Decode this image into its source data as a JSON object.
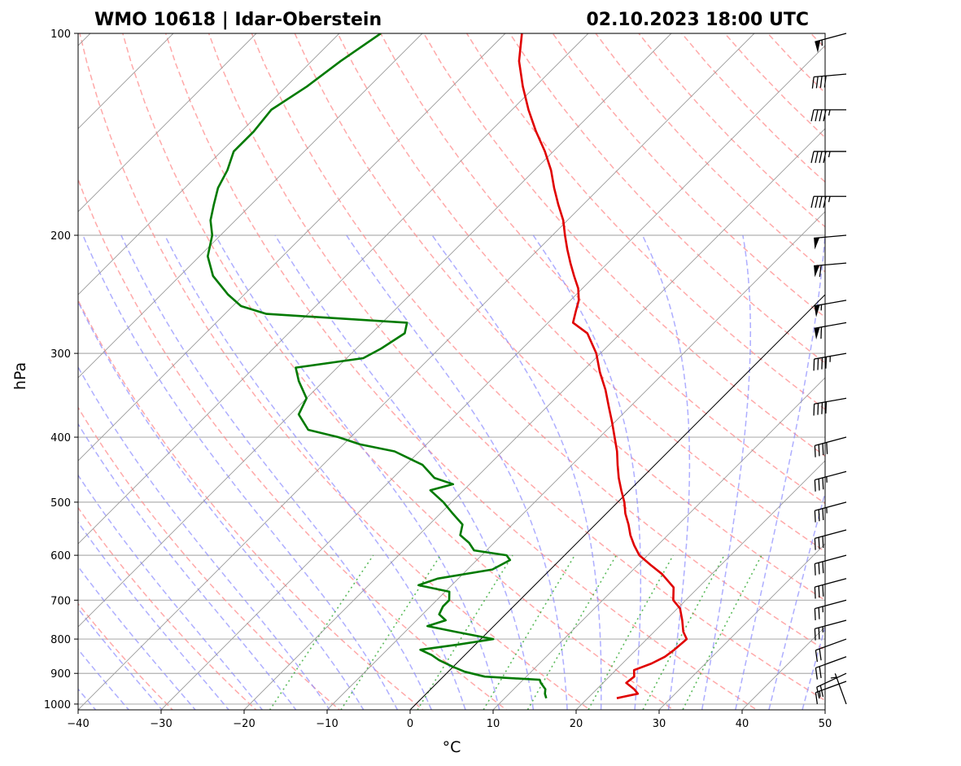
{
  "header": {
    "station": "WMO 10618 | Idar-Oberstein",
    "datetime": "02.10.2023 18:00 UTC"
  },
  "chart_data": {
    "type": "skew-t",
    "title_left": "WMO 10618 | Idar-Oberstein",
    "title_right": "02.10.2023 18:00 UTC",
    "xlabel": "°C",
    "ylabel": "hPa",
    "xlim": [
      -40,
      50
    ],
    "ylim": [
      1020,
      100
    ],
    "xticks": [
      "−40",
      "−30",
      "−20",
      "−10",
      "0",
      "10",
      "20",
      "30",
      "40",
      "50"
    ],
    "xtick_values": [
      -40,
      -30,
      -20,
      -10,
      0,
      10,
      20,
      30,
      40,
      50
    ],
    "yticks": [
      "100",
      "200",
      "300",
      "400",
      "500",
      "600",
      "700",
      "800",
      "900",
      "1000"
    ],
    "ytick_values": [
      100,
      200,
      300,
      400,
      500,
      600,
      700,
      800,
      900,
      1000
    ],
    "colors": {
      "temperature": "#e00000",
      "dewpoint": "#007a00",
      "dry_adiabat": "#ff8c8c",
      "moist_adiabat": "#8c8cff",
      "mixing_ratio": "#33aa33",
      "isotherm": "#9a9a9a",
      "grid": "#b0b0b0"
    },
    "series": [
      {
        "name": "Temperature",
        "points": [
          [
            980,
            23.5
          ],
          [
            965,
            25.5
          ],
          [
            950,
            24.5
          ],
          [
            930,
            22.8
          ],
          [
            910,
            23.0
          ],
          [
            890,
            22.2
          ],
          [
            870,
            23.5
          ],
          [
            850,
            24.3
          ],
          [
            830,
            24.6
          ],
          [
            800,
            24.8
          ],
          [
            780,
            23.5
          ],
          [
            750,
            22.0
          ],
          [
            720,
            20.3
          ],
          [
            700,
            18.5
          ],
          [
            670,
            17.0
          ],
          [
            640,
            14.0
          ],
          [
            620,
            11.5
          ],
          [
            600,
            9.0
          ],
          [
            580,
            7.2
          ],
          [
            560,
            5.5
          ],
          [
            540,
            4.0
          ],
          [
            520,
            2.3
          ],
          [
            500,
            0.8
          ],
          [
            480,
            -1.0
          ],
          [
            460,
            -2.8
          ],
          [
            440,
            -4.5
          ],
          [
            420,
            -6.2
          ],
          [
            400,
            -8.2
          ],
          [
            380,
            -10.3
          ],
          [
            360,
            -12.6
          ],
          [
            340,
            -15.0
          ],
          [
            320,
            -17.8
          ],
          [
            300,
            -20.5
          ],
          [
            280,
            -24.0
          ],
          [
            270,
            -27.0
          ],
          [
            260,
            -28.0
          ],
          [
            250,
            -29.0
          ],
          [
            240,
            -30.5
          ],
          [
            230,
            -32.5
          ],
          [
            220,
            -34.5
          ],
          [
            210,
            -36.5
          ],
          [
            200,
            -38.5
          ],
          [
            190,
            -40.5
          ],
          [
            180,
            -43.0
          ],
          [
            170,
            -45.5
          ],
          [
            160,
            -48.0
          ],
          [
            150,
            -51.0
          ],
          [
            140,
            -54.5
          ],
          [
            130,
            -58.0
          ],
          [
            120,
            -61.5
          ],
          [
            110,
            -65.0
          ],
          [
            100,
            -68.0
          ]
        ]
      },
      {
        "name": "Dewpoint",
        "points": [
          [
            980,
            15.0
          ],
          [
            965,
            14.3
          ],
          [
            950,
            13.8
          ],
          [
            930,
            12.5
          ],
          [
            920,
            12.0
          ],
          [
            910,
            5.0
          ],
          [
            895,
            2.0
          ],
          [
            880,
            0.0
          ],
          [
            860,
            -2.5
          ],
          [
            845,
            -4.0
          ],
          [
            830,
            -6.0
          ],
          [
            815,
            -2.0
          ],
          [
            800,
            1.5
          ],
          [
            780,
            -4.0
          ],
          [
            765,
            -8.0
          ],
          [
            750,
            -6.5
          ],
          [
            735,
            -8.0
          ],
          [
            715,
            -8.5
          ],
          [
            700,
            -8.5
          ],
          [
            680,
            -9.5
          ],
          [
            665,
            -14.0
          ],
          [
            650,
            -12.5
          ],
          [
            630,
            -7.0
          ],
          [
            610,
            -6.0
          ],
          [
            600,
            -7.0
          ],
          [
            590,
            -11.5
          ],
          [
            575,
            -13.0
          ],
          [
            560,
            -15.0
          ],
          [
            540,
            -16.0
          ],
          [
            520,
            -18.5
          ],
          [
            500,
            -21.0
          ],
          [
            480,
            -24.0
          ],
          [
            470,
            -22.0
          ],
          [
            460,
            -25.0
          ],
          [
            440,
            -28.0
          ],
          [
            420,
            -33.0
          ],
          [
            410,
            -38.0
          ],
          [
            400,
            -41.5
          ],
          [
            390,
            -46.0
          ],
          [
            370,
            -49.0
          ],
          [
            350,
            -50.0
          ],
          [
            330,
            -53.0
          ],
          [
            315,
            -55.0
          ],
          [
            305,
            -48.0
          ],
          [
            295,
            -47.0
          ],
          [
            280,
            -46.0
          ],
          [
            270,
            -47.0
          ],
          [
            262,
            -65.0
          ],
          [
            255,
            -69.0
          ],
          [
            245,
            -72.0
          ],
          [
            230,
            -76.0
          ],
          [
            215,
            -79.0
          ],
          [
            200,
            -81.0
          ],
          [
            190,
            -83.0
          ],
          [
            180,
            -84.5
          ],
          [
            170,
            -86.0
          ],
          [
            160,
            -87.0
          ],
          [
            150,
            -88.5
          ],
          [
            140,
            -88.5
          ],
          [
            130,
            -89.0
          ],
          [
            120,
            -87.5
          ],
          [
            110,
            -86.5
          ],
          [
            100,
            -85.0
          ]
        ]
      }
    ],
    "wind_barbs": [
      {
        "p": 1000,
        "dir": 340,
        "speed": 5
      },
      {
        "p": 925,
        "dir": 250,
        "speed": 15
      },
      {
        "p": 900,
        "dir": 245,
        "speed": 20
      },
      {
        "p": 850,
        "dir": 250,
        "speed": 20
      },
      {
        "p": 800,
        "dir": 250,
        "speed": 20
      },
      {
        "p": 750,
        "dir": 255,
        "speed": 25
      },
      {
        "p": 700,
        "dir": 255,
        "speed": 25
      },
      {
        "p": 650,
        "dir": 255,
        "speed": 30
      },
      {
        "p": 600,
        "dir": 255,
        "speed": 30
      },
      {
        "p": 550,
        "dir": 255,
        "speed": 30
      },
      {
        "p": 500,
        "dir": 255,
        "speed": 35
      },
      {
        "p": 450,
        "dir": 255,
        "speed": 35
      },
      {
        "p": 400,
        "dir": 255,
        "speed": 40
      },
      {
        "p": 350,
        "dir": 260,
        "speed": 40
      },
      {
        "p": 300,
        "dir": 260,
        "speed": 45
      },
      {
        "p": 270,
        "dir": 260,
        "speed": 60
      },
      {
        "p": 250,
        "dir": 260,
        "speed": 55
      },
      {
        "p": 220,
        "dir": 265,
        "speed": 60
      },
      {
        "p": 200,
        "dir": 265,
        "speed": 50
      },
      {
        "p": 175,
        "dir": 270,
        "speed": 45
      },
      {
        "p": 150,
        "dir": 270,
        "speed": 45
      },
      {
        "p": 130,
        "dir": 270,
        "speed": 45
      },
      {
        "p": 115,
        "dir": 265,
        "speed": 40
      },
      {
        "p": 100,
        "dir": 255,
        "speed": 55
      }
    ]
  }
}
